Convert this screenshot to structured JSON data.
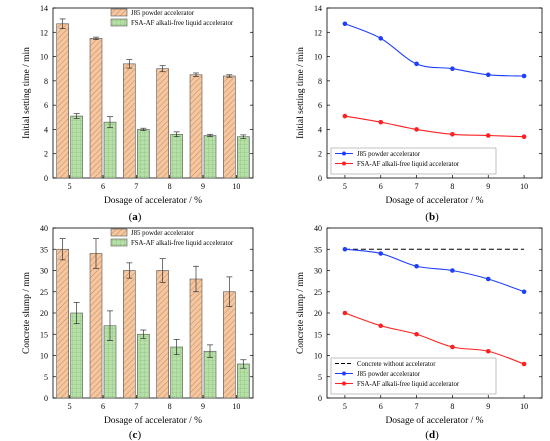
{
  "chart_data": [
    {
      "panel_label": "(a)",
      "type": "bar",
      "xlabel": "Dosage of accelerator / %",
      "ylabel": "Initial setting time / min",
      "categories": [
        "5",
        "6",
        "7",
        "8",
        "9",
        "10"
      ],
      "ylim": [
        0,
        14
      ],
      "yticks": [
        0,
        2,
        4,
        6,
        8,
        10,
        12,
        14
      ],
      "legend_position": "top-right",
      "series": [
        {
          "name": "J85 powder accelerator",
          "values": [
            12.7,
            11.5,
            9.4,
            9.0,
            8.5,
            8.4
          ],
          "errors": [
            0.4,
            0.1,
            0.35,
            0.25,
            0.15,
            0.1
          ],
          "color": "#f4c7a1",
          "pattern": "hatch"
        },
        {
          "name": "FSA-AF alkali-free liquid accelerator",
          "values": [
            5.1,
            4.6,
            4.0,
            3.6,
            3.5,
            3.4
          ],
          "errors": [
            0.2,
            0.45,
            0.1,
            0.2,
            0.1,
            0.15
          ],
          "color": "#b6e0a8",
          "pattern": "grid"
        }
      ]
    },
    {
      "panel_label": "(b)",
      "type": "line",
      "xlabel": "Dosage of accelerator / %",
      "ylabel": "Initial setting time / min",
      "x": [
        5,
        6,
        7,
        8,
        9,
        10
      ],
      "xlim": [
        4.5,
        10.5
      ],
      "ylim": [
        0,
        14
      ],
      "yticks": [
        0,
        2,
        4,
        6,
        8,
        10,
        12,
        14
      ],
      "legend_position": "bottom-left",
      "series": [
        {
          "name": "J85 powder accelerator",
          "values": [
            12.7,
            11.5,
            9.4,
            9.0,
            8.5,
            8.4
          ],
          "color": "#1f3fff"
        },
        {
          "name": "FSA-AF alkali-free liquid accelerator",
          "values": [
            5.1,
            4.6,
            4.0,
            3.6,
            3.5,
            3.4
          ],
          "color": "#ff2020"
        }
      ]
    },
    {
      "panel_label": "(c)",
      "type": "bar",
      "xlabel": "Dosage of accelerator / %",
      "ylabel": "Concrete slump / mm",
      "categories": [
        "5",
        "6",
        "7",
        "8",
        "9",
        "10"
      ],
      "ylim": [
        0,
        40
      ],
      "yticks": [
        0,
        5,
        10,
        15,
        20,
        25,
        30,
        35,
        40
      ],
      "legend_position": "top-right",
      "series": [
        {
          "name": "J85 powder accelerator",
          "values": [
            35,
            34,
            30,
            30,
            28,
            25
          ],
          "errors": [
            2.5,
            3.5,
            1.8,
            2.8,
            3.0,
            3.5
          ],
          "color": "#f4c7a1",
          "pattern": "hatch"
        },
        {
          "name": "FSA-AF alkali-free liquid accelerator",
          "values": [
            20,
            17,
            15,
            12,
            11,
            8
          ],
          "errors": [
            2.5,
            3.5,
            1.0,
            1.8,
            1.5,
            1.0
          ],
          "color": "#b6e0a8",
          "pattern": "grid"
        }
      ]
    },
    {
      "panel_label": "(d)",
      "type": "line",
      "xlabel": "Dosage of accelerator / %",
      "ylabel": "Concrete slump / mm",
      "x": [
        5,
        6,
        7,
        8,
        9,
        10
      ],
      "xlim": [
        4.5,
        10.5
      ],
      "ylim": [
        0,
        40
      ],
      "yticks": [
        0,
        5,
        10,
        15,
        20,
        25,
        30,
        35,
        40
      ],
      "legend_position": "bottom-left",
      "series": [
        {
          "name": "Concrete without accelerator",
          "values": [
            35,
            35,
            35,
            35,
            35,
            35
          ],
          "color": "#000000",
          "dashed": true,
          "markers": false
        },
        {
          "name": "J85 powder accelerator",
          "values": [
            35,
            34,
            31,
            30,
            28,
            25
          ],
          "color": "#1f3fff"
        },
        {
          "name": "FSA-AF alkali-free liquid accelerator",
          "values": [
            20,
            17,
            15,
            12,
            11,
            8
          ],
          "color": "#ff2020"
        }
      ]
    }
  ]
}
